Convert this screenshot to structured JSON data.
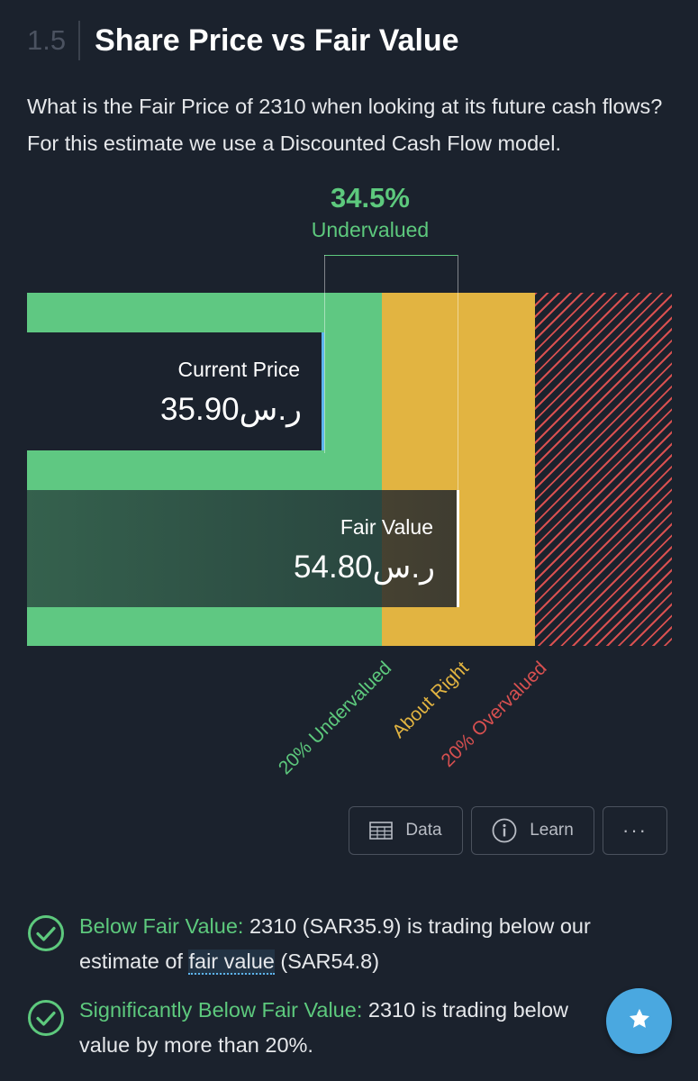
{
  "section": {
    "number": "1.5",
    "title": "Share Price vs Fair Value"
  },
  "intro": "What is the Fair Price of 2310 when looking at its future cash flows? For this estimate we use a Discounted Cash Flow model.",
  "valuation": {
    "percent": "34.5%",
    "status": "Undervalued",
    "current_price_label": "Current Price",
    "current_price_value": "35.90ر.س",
    "fair_value_label": "Fair Value",
    "fair_value_value": "54.80ر.س",
    "zones": {
      "undervalued": "20% Undervalued",
      "about_right": "About Right",
      "overvalued": "20% Overvalued"
    },
    "colors": {
      "undervalued": "#5fc882",
      "about_right": "#e2b441",
      "overvalued": "#d85050"
    }
  },
  "buttons": {
    "data": "Data",
    "learn": "Learn",
    "more": "···"
  },
  "checks": [
    {
      "highlight": "Below Fair Value:",
      "text_before": " 2310 (SAR35.9) is trading below our estimate of ",
      "link": "fair value",
      "text_after": " (SAR54.8)"
    },
    {
      "highlight": "Significantly Below Fair Value:",
      "text": " 2310 is trading below value by more than 20%."
    }
  ]
}
